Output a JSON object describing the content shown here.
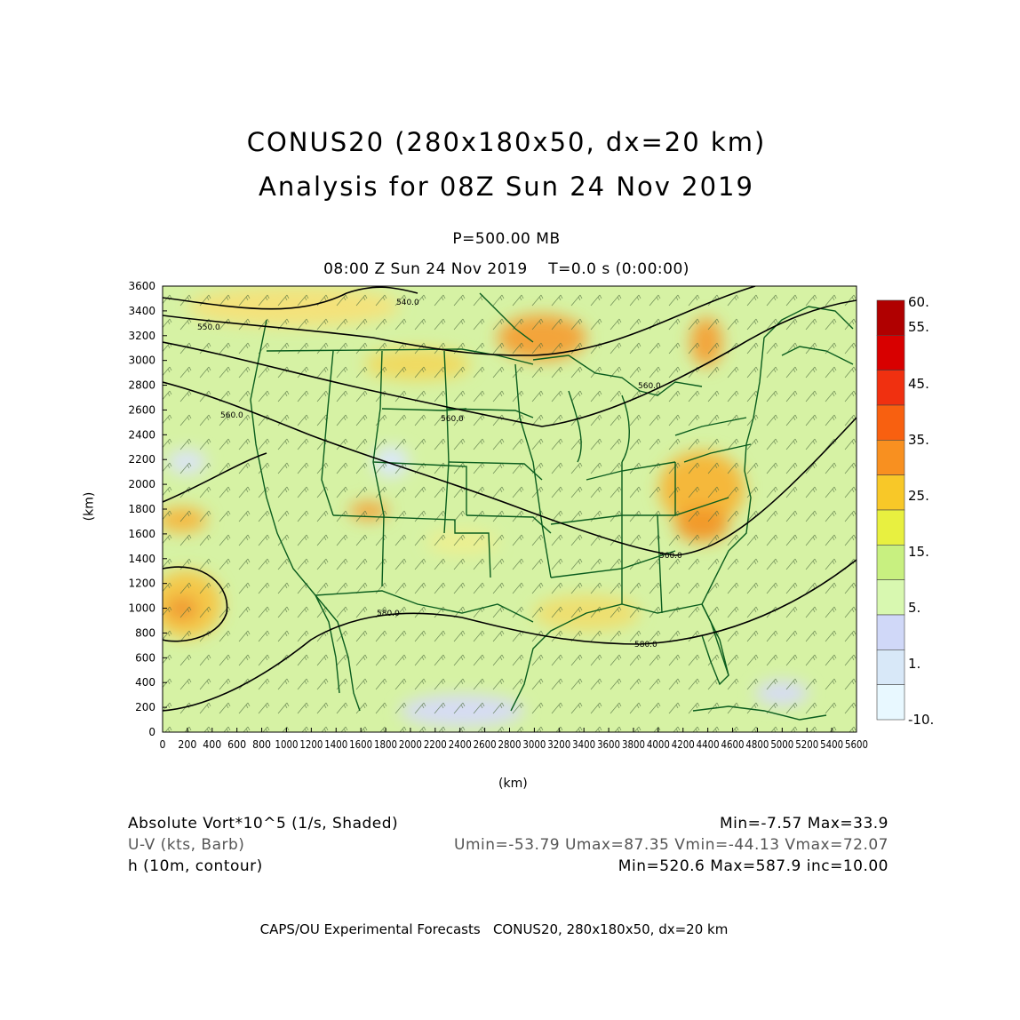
{
  "header": {
    "title_line1": "CONUS20 (280x180x50, dx=20 km)",
    "title_line2": "Analysis for 08Z Sun 24 Nov 2019",
    "level": "P=500.00 MB",
    "valid_time": "08:00 Z Sun 24 Nov 2019    T=0.0 s (0:00:00)"
  },
  "axes": {
    "x_label": "(km)",
    "y_label": "(km)",
    "x_ticks": [
      "0",
      "200",
      "400",
      "600",
      "800",
      "1000",
      "1200",
      "1400",
      "1600",
      "1800",
      "2000",
      "2200",
      "2400",
      "2600",
      "2800",
      "3000",
      "3200",
      "3400",
      "3600",
      "3800",
      "4000",
      "4200",
      "4400",
      "4600",
      "4800",
      "5000",
      "5200",
      "5400",
      "5600"
    ],
    "y_ticks": [
      "0",
      "200",
      "400",
      "600",
      "800",
      "1000",
      "1200",
      "1400",
      "1600",
      "1800",
      "2000",
      "2200",
      "2400",
      "2600",
      "2800",
      "3000",
      "3200",
      "3400",
      "3600"
    ],
    "x_range": [
      0,
      5600
    ],
    "y_range": [
      0,
      3600
    ]
  },
  "contours": {
    "labels": [
      "540.0",
      "550.0",
      "560.0",
      "560.0",
      "560.0",
      "560.0",
      "580.0",
      "580.0",
      "580.0"
    ]
  },
  "colorbar": {
    "labels": [
      "60.",
      "55.",
      "45.",
      "35.",
      "25.",
      "15.",
      "5.",
      "1.",
      "-10."
    ],
    "colors": [
      "#b00000",
      "#d80000",
      "#f03010",
      "#f86010",
      "#f89020",
      "#f8c828",
      "#e8f040",
      "#c8f080",
      "#d8f8b0",
      "#d0d8f8",
      "#d8e8f8",
      "#e8f8ff"
    ]
  },
  "legend": {
    "line1_left": "Absolute Vort*10^5 (1/s, Shaded)",
    "line1_right": "Min=-7.57 Max=33.9",
    "line2_left": "U-V (kts, Barb)",
    "line2_right": "Umin=-53.79 Umax=87.35 Vmin=-44.13 Vmax=72.07",
    "line3_left": "h (10m, contour)",
    "line3_right": "Min=520.6 Max=587.9 inc=10.00"
  },
  "footer": {
    "credit": "CAPS/OU Experimental Forecasts   CONUS20, 280x180x50, dx=20 km"
  },
  "colors": {
    "map_base": "#d6f2a4",
    "boundary": "#0b5d1e",
    "contour": "#000000"
  }
}
